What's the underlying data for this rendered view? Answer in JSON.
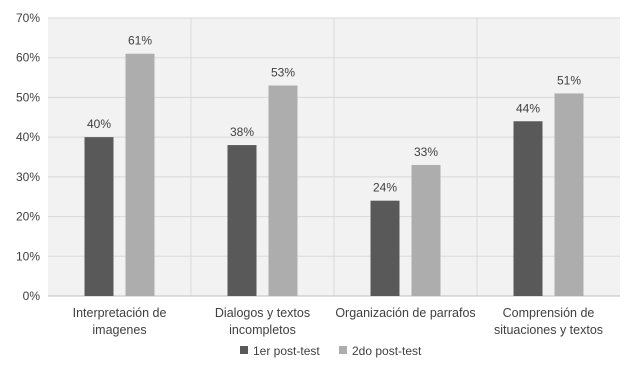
{
  "chart_data": {
    "type": "bar",
    "categories": [
      [
        "Interpretación de",
        "imagenes"
      ],
      [
        "Dialogos y textos",
        "incompletos"
      ],
      [
        "Organización de parrafos"
      ],
      [
        "Comprensión de",
        "situaciones y textos"
      ]
    ],
    "series": [
      {
        "name": "1er post-test",
        "values": [
          40,
          38,
          24,
          44
        ],
        "labels": [
          "40%",
          "38%",
          "24%",
          "44%"
        ],
        "color": "#595959"
      },
      {
        "name": "2do post-test",
        "values": [
          61,
          53,
          33,
          51
        ],
        "labels": [
          "61%",
          "53%",
          "33%",
          "51%"
        ],
        "color": "#adadad"
      }
    ],
    "ylim": [
      0,
      70
    ],
    "yticks": [
      0,
      10,
      20,
      30,
      40,
      50,
      60,
      70
    ],
    "ytick_labels": [
      "0%",
      "10%",
      "20%",
      "30%",
      "40%",
      "50%",
      "60%",
      "70%"
    ],
    "grid": true,
    "legend_position": "bottom",
    "colors": {
      "plot_bg": "#f2f2f2",
      "grid": "#d9d9d9",
      "text": "#404040"
    }
  }
}
